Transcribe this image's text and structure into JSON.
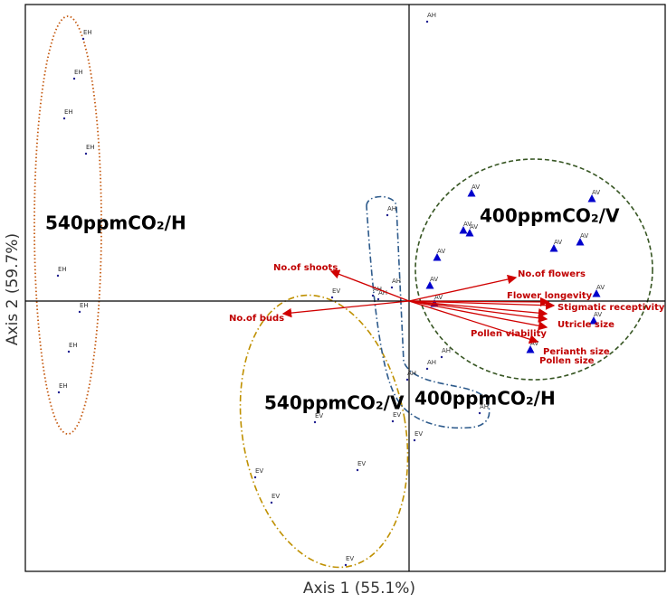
{
  "chart_data": {
    "type": "biplot",
    "x_label": "Axis 1 (55.1%)",
    "y_label": "Axis 2 (59.7%)",
    "xlim": [
      -4.24,
      2.83
    ],
    "ylim": [
      -2.99,
      3.28
    ],
    "series": [
      {
        "name": "EH",
        "color": "#1f1f8f",
        "marker": "dot",
        "x": [
          -3.6,
          -3.7,
          -3.81,
          -3.57,
          -3.88,
          -3.64,
          -3.76,
          -3.87
        ],
        "values": [
          2.9,
          2.46,
          2.02,
          1.63,
          0.28,
          -0.12,
          -0.56,
          -1.01
        ]
      },
      {
        "name": "AH",
        "color": "#1f1f8f",
        "marker": "dot",
        "x": [
          0.2,
          -0.24,
          -0.19,
          -0.4,
          -0.34,
          0.36,
          0.2,
          -0.02,
          0.78
        ],
        "values": [
          3.09,
          0.95,
          0.15,
          0.06,
          0.02,
          -0.62,
          -0.75,
          -0.87,
          -1.24
        ]
      },
      {
        "name": "AV",
        "color": "#0000cc",
        "marker": "triangle",
        "x": [
          0.69,
          0.6,
          0.67,
          0.31,
          0.23,
          0.28,
          1.6,
          1.89,
          2.02,
          2.07,
          2.04,
          1.34
        ],
        "values": [
          1.19,
          0.78,
          0.75,
          0.48,
          0.17,
          -0.03,
          0.58,
          0.65,
          1.13,
          0.08,
          -0.22,
          -0.54
        ]
      },
      {
        "name": "EV",
        "color": "#1f1f8f",
        "marker": "dot",
        "x": [
          -0.85,
          -1.04,
          -0.18,
          0.06,
          -0.57,
          -1.7,
          -1.52,
          -0.7
        ],
        "values": [
          0.04,
          -1.34,
          -1.33,
          -1.54,
          -1.87,
          -1.95,
          -2.23,
          -2.92
        ]
      }
    ],
    "vectors": {
      "color": "#d00000",
      "names": [
        "No.of shoots",
        "No.of buds",
        "No.of flowers",
        "Flower longevity",
        "Stigmatic receptivity",
        "Utricle size",
        "Pollen viability",
        "Perianth size",
        "Pollen size"
      ],
      "x": [
        -0.86,
        -1.39,
        1.18,
        1.54,
        1.6,
        1.52,
        1.52,
        1.52,
        1.42
      ],
      "values": [
        0.33,
        -0.14,
        0.26,
        -0.01,
        -0.05,
        -0.14,
        -0.2,
        -0.29,
        -0.45
      ]
    },
    "annotations": [
      "540ppmCO₂/H",
      "400ppmCO₂/V",
      "540ppmCO₂/V",
      "400ppmCO₂/H"
    ]
  }
}
